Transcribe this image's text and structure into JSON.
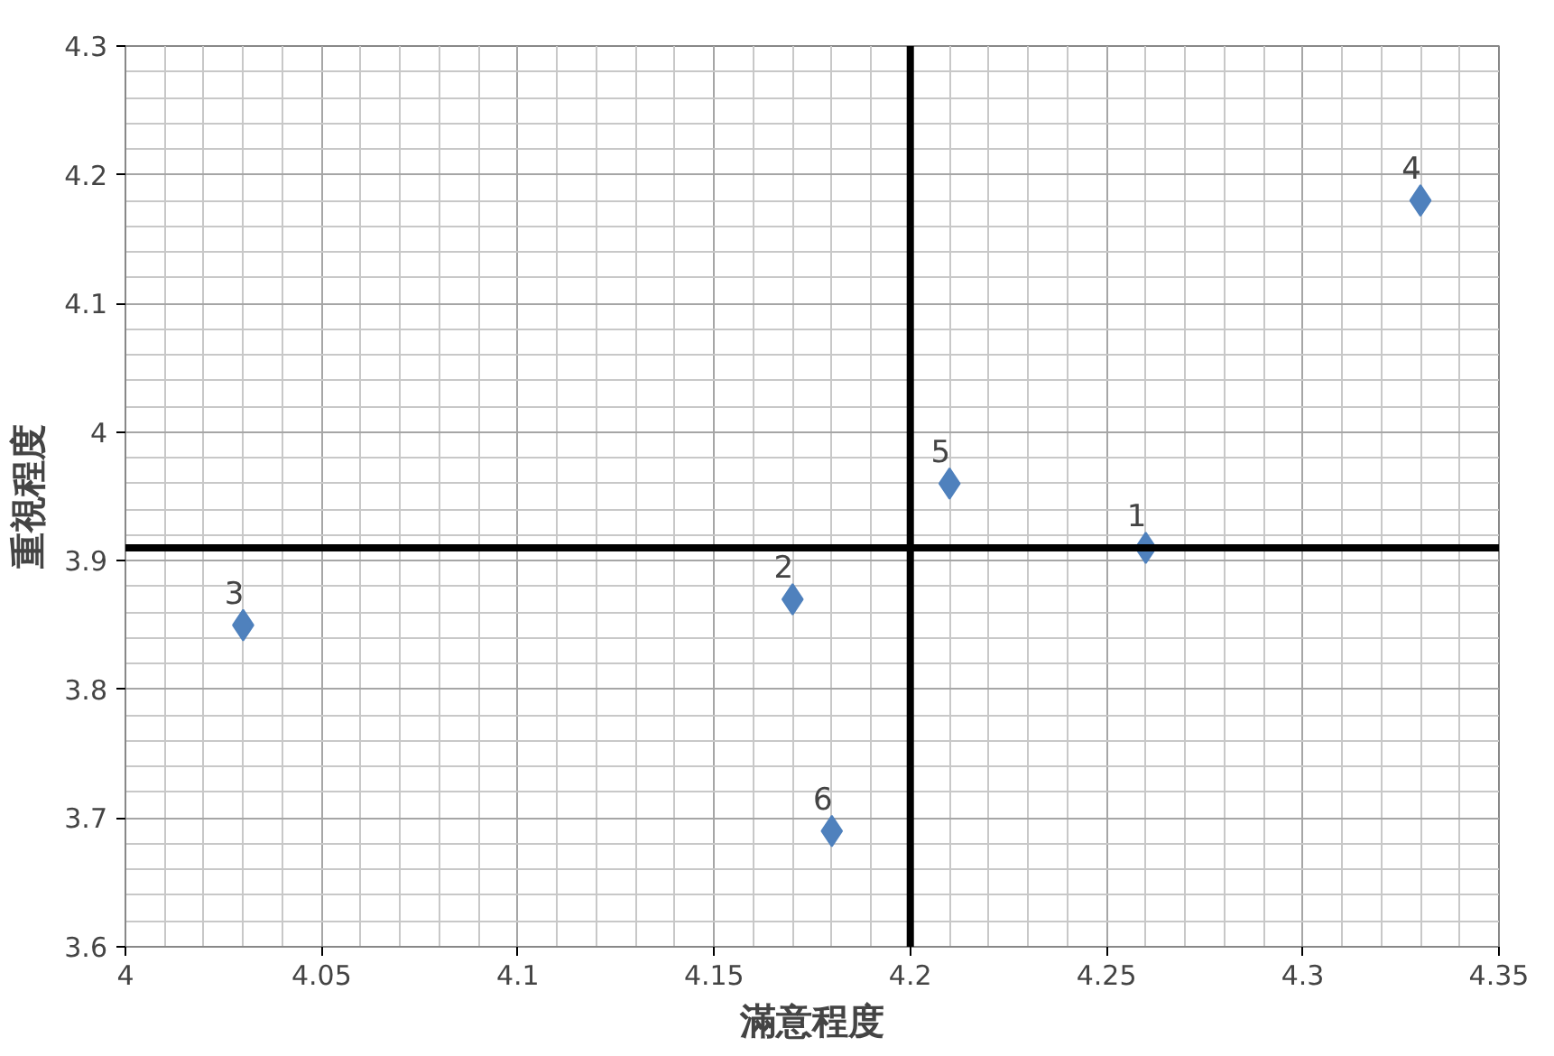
{
  "chart_data": {
    "type": "scatter",
    "xlabel": "滿意程度",
    "ylabel": "重視程度",
    "x": [
      4.26,
      4.17,
      4.03,
      4.33,
      4.21,
      4.18
    ],
    "series": [
      {
        "color": "#4f81bd",
        "values": [
          3.91,
          3.87,
          3.85,
          4.18,
          3.96,
          3.69
        ]
      }
    ],
    "xlim": [
      4,
      4.35
    ],
    "xticks": [
      4,
      4.05,
      4.1,
      4.15,
      4.2,
      4.25,
      4.3,
      4.35
    ],
    "ylim": [
      3.6,
      4.3
    ],
    "yticks": [
      3.6,
      3.7,
      3.8,
      3.9,
      4,
      4.1,
      4.2,
      4.3
    ],
    "ref_lines": [
      {
        "axis": "x",
        "value": 4.2,
        "color": "#000000"
      },
      {
        "axis": "y",
        "value": 3.91,
        "color": "#000000"
      }
    ],
    "annotations": [
      {
        "text": "1",
        "x": 4.26,
        "y": 3.91
      },
      {
        "text": "2",
        "x": 4.17,
        "y": 3.87
      },
      {
        "text": "3",
        "x": 4.03,
        "y": 3.85
      },
      {
        "text": "4",
        "x": 4.33,
        "y": 4.18
      },
      {
        "text": "5",
        "x": 4.21,
        "y": 3.96
      },
      {
        "text": "6",
        "x": 4.18,
        "y": 3.69
      }
    ],
    "grid": true,
    "marker": "diamond"
  }
}
